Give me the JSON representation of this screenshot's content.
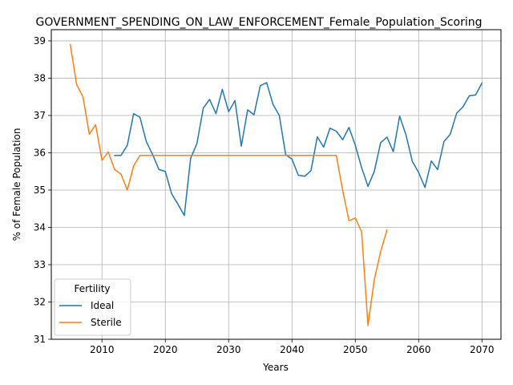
{
  "chart_data": {
    "type": "line",
    "title": "GOVERNMENT_SPENDING_ON_LAW_ENFORCEMENT_Female_Population_Scoring",
    "xlabel": "Years",
    "ylabel": "% of Female Population",
    "xlim": [
      2002,
      2073
    ],
    "ylim": [
      31,
      39.3
    ],
    "xticks": [
      2010,
      2020,
      2030,
      2040,
      2050,
      2060,
      2070
    ],
    "yticks": [
      31,
      32,
      33,
      34,
      35,
      36,
      37,
      38,
      39
    ],
    "grid": true,
    "legend": {
      "title": "Fertility",
      "placement": "lower-left"
    },
    "series": [
      {
        "name": "Ideal",
        "color": "#1f77b4",
        "points": [
          [
            2012,
            35.93
          ],
          [
            2013,
            35.93
          ],
          [
            2014,
            36.2
          ],
          [
            2015,
            37.05
          ],
          [
            2016,
            36.95
          ],
          [
            2017,
            36.3
          ],
          [
            2018,
            35.95
          ],
          [
            2019,
            35.55
          ],
          [
            2020,
            35.5
          ],
          [
            2021,
            34.9
          ],
          [
            2022,
            34.62
          ],
          [
            2023,
            34.32
          ],
          [
            2024,
            35.85
          ],
          [
            2025,
            36.25
          ],
          [
            2026,
            37.2
          ],
          [
            2027,
            37.43
          ],
          [
            2028,
            37.05
          ],
          [
            2029,
            37.7
          ],
          [
            2030,
            37.1
          ],
          [
            2031,
            37.4
          ],
          [
            2032,
            36.18
          ],
          [
            2033,
            37.15
          ],
          [
            2034,
            37.02
          ],
          [
            2035,
            37.8
          ],
          [
            2036,
            37.88
          ],
          [
            2037,
            37.3
          ],
          [
            2038,
            37.0
          ],
          [
            2039,
            35.95
          ],
          [
            2040,
            35.83
          ],
          [
            2041,
            35.4
          ],
          [
            2042,
            35.37
          ],
          [
            2043,
            35.52
          ],
          [
            2044,
            36.43
          ],
          [
            2045,
            36.15
          ],
          [
            2046,
            36.66
          ],
          [
            2047,
            36.58
          ],
          [
            2048,
            36.35
          ],
          [
            2049,
            36.68
          ],
          [
            2050,
            36.2
          ],
          [
            2051,
            35.6
          ],
          [
            2052,
            35.1
          ],
          [
            2053,
            35.5
          ],
          [
            2054,
            36.27
          ],
          [
            2055,
            36.42
          ],
          [
            2056,
            36.03
          ],
          [
            2057,
            36.98
          ],
          [
            2058,
            36.48
          ],
          [
            2059,
            35.77
          ],
          [
            2060,
            35.47
          ],
          [
            2061,
            35.07
          ],
          [
            2062,
            35.78
          ],
          [
            2063,
            35.55
          ],
          [
            2064,
            36.3
          ],
          [
            2065,
            36.5
          ],
          [
            2066,
            37.06
          ],
          [
            2067,
            37.23
          ],
          [
            2068,
            37.53
          ],
          [
            2069,
            37.55
          ],
          [
            2070,
            37.87
          ]
        ]
      },
      {
        "name": "Sterile",
        "color": "#ff7f0e",
        "points": [
          [
            2005,
            38.9
          ],
          [
            2006,
            37.83
          ],
          [
            2007,
            37.5
          ],
          [
            2008,
            36.5
          ],
          [
            2009,
            36.75
          ],
          [
            2010,
            35.8
          ],
          [
            2011,
            36.02
          ],
          [
            2012,
            35.55
          ],
          [
            2013,
            35.43
          ],
          [
            2014,
            35.0
          ],
          [
            2015,
            35.65
          ],
          [
            2016,
            35.93
          ],
          [
            2017,
            35.93
          ],
          [
            2018,
            35.93
          ],
          [
            2019,
            35.93
          ],
          [
            2020,
            35.93
          ],
          [
            2021,
            35.93
          ],
          [
            2022,
            35.93
          ],
          [
            2023,
            35.93
          ],
          [
            2024,
            35.93
          ],
          [
            2025,
            35.93
          ],
          [
            2026,
            35.93
          ],
          [
            2027,
            35.93
          ],
          [
            2028,
            35.93
          ],
          [
            2029,
            35.93
          ],
          [
            2030,
            35.93
          ],
          [
            2031,
            35.93
          ],
          [
            2032,
            35.93
          ],
          [
            2033,
            35.93
          ],
          [
            2034,
            35.93
          ],
          [
            2035,
            35.93
          ],
          [
            2036,
            35.93
          ],
          [
            2037,
            35.93
          ],
          [
            2038,
            35.93
          ],
          [
            2039,
            35.93
          ],
          [
            2040,
            35.93
          ],
          [
            2041,
            35.93
          ],
          [
            2042,
            35.93
          ],
          [
            2043,
            35.93
          ],
          [
            2044,
            35.93
          ],
          [
            2045,
            35.93
          ],
          [
            2046,
            35.93
          ],
          [
            2047,
            35.93
          ],
          [
            2048,
            35.0
          ],
          [
            2049,
            34.18
          ],
          [
            2050,
            34.25
          ],
          [
            2051,
            33.88
          ],
          [
            2052,
            31.37
          ],
          [
            2053,
            32.6
          ],
          [
            2054,
            33.35
          ],
          [
            2055,
            33.93
          ]
        ]
      }
    ]
  }
}
